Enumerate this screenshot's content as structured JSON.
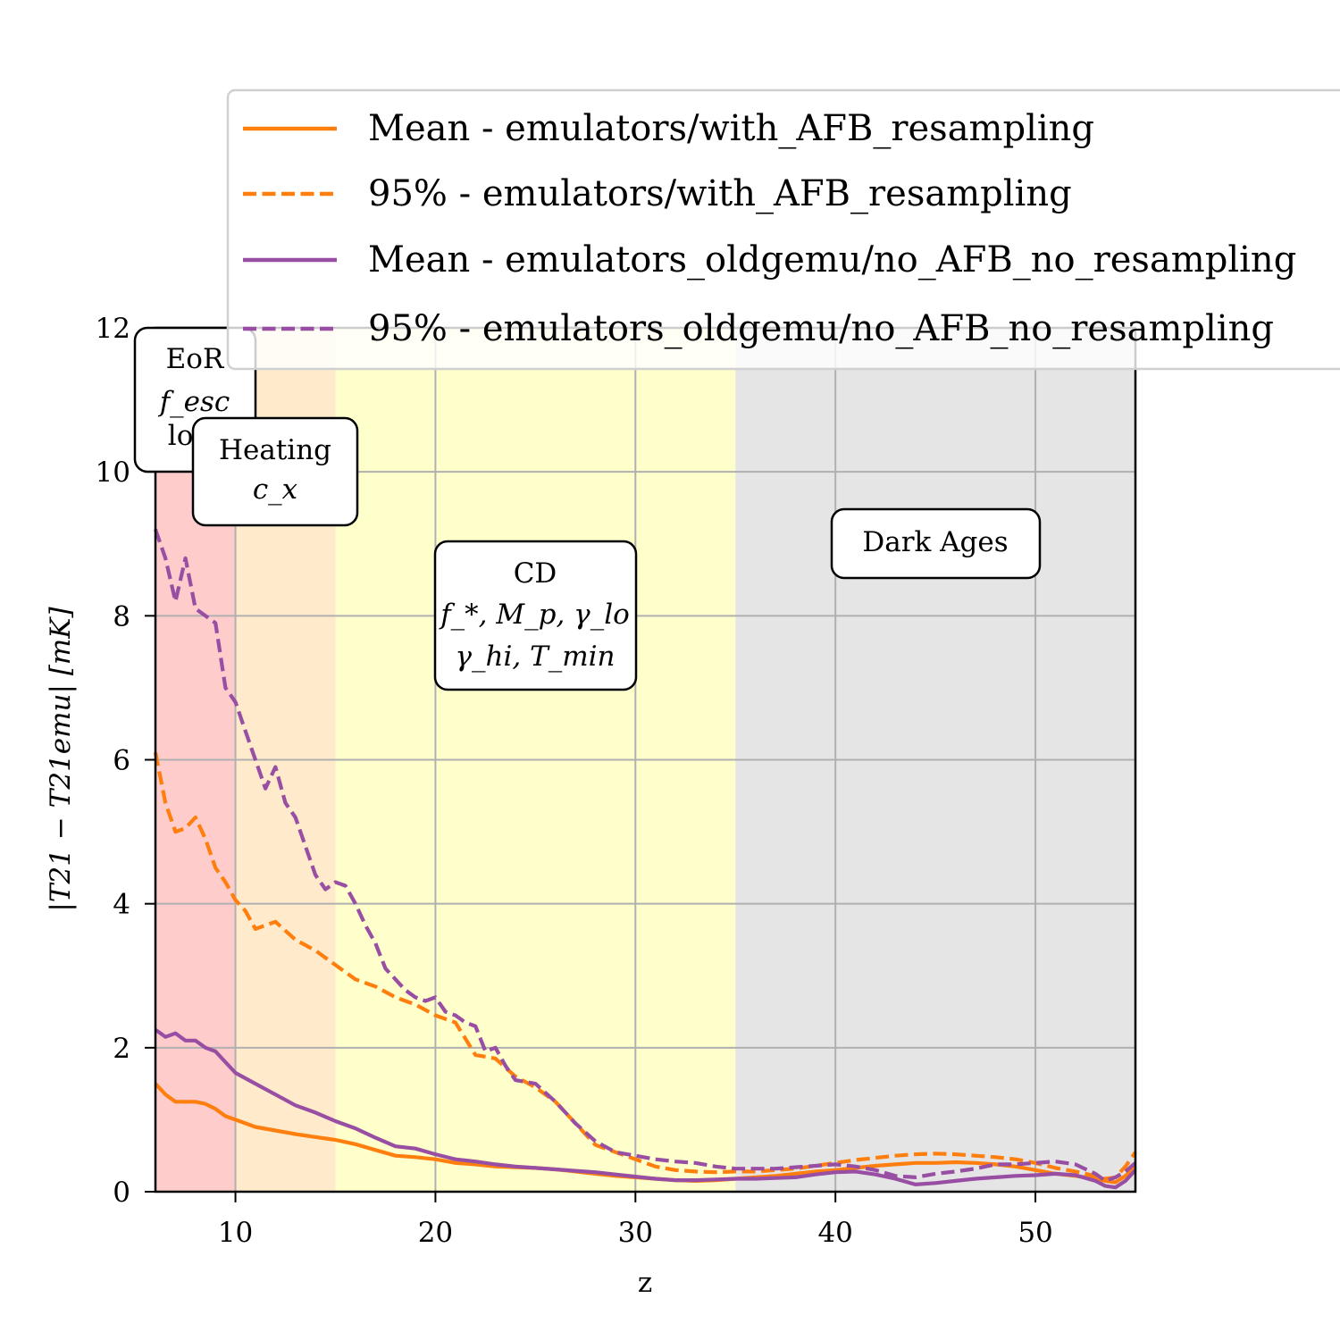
{
  "chart_data": {
    "type": "line",
    "xlabel": "z",
    "ylabel": "|T21 − T21emu| [mK]",
    "xlim": [
      6,
      55
    ],
    "ylim": [
      0,
      12
    ],
    "xticks": [
      "10",
      "20",
      "30",
      "40",
      "50"
    ],
    "yticks": [
      "0",
      "2",
      "4",
      "6",
      "8",
      "10",
      "12"
    ],
    "grid": true,
    "legend_position": "top-right (outside above plot)",
    "regions": [
      {
        "name": "EoR",
        "z_range": [
          6,
          10
        ],
        "color": "#ffcccc"
      },
      {
        "name": "Heating",
        "z_range": [
          10,
          15
        ],
        "color": "#ffebcc"
      },
      {
        "name": "CD",
        "z_range": [
          15,
          35
        ],
        "color": "#ffffcc"
      },
      {
        "name": "Dark Ages",
        "z_range": [
          35,
          55
        ],
        "color": "#e5e5e5"
      }
    ],
    "annotations": [
      {
        "id": "eor",
        "lines": [
          "EoR",
          "f_esc",
          "log"
        ]
      },
      {
        "id": "heating",
        "lines": [
          "Heating",
          "c_x"
        ]
      },
      {
        "id": "cd",
        "lines": [
          "CD",
          "f_*, M_p, γ_lo",
          "γ_hi, T_min"
        ]
      },
      {
        "id": "darkages",
        "lines": [
          "Dark Ages"
        ]
      }
    ],
    "series": [
      {
        "name": "Mean - emulators/with_AFB_resampling",
        "color": "#ff7f0e",
        "style": "solid",
        "x": [
          6,
          6.5,
          7,
          7.5,
          8,
          8.5,
          9,
          9.5,
          10,
          11,
          12,
          13,
          14,
          15,
          16,
          17,
          18,
          19,
          20,
          21,
          22,
          23,
          24,
          25,
          26,
          27,
          28,
          29,
          30,
          31,
          32,
          33,
          34,
          35,
          36,
          37,
          38,
          39,
          40,
          41,
          42,
          43,
          44,
          45,
          46,
          47,
          48,
          49,
          50,
          51,
          52,
          53,
          53.5,
          54,
          54.5,
          55
        ],
        "y": [
          1.5,
          1.35,
          1.25,
          1.25,
          1.25,
          1.22,
          1.15,
          1.05,
          1.0,
          0.9,
          0.85,
          0.8,
          0.76,
          0.72,
          0.66,
          0.58,
          0.5,
          0.48,
          0.45,
          0.4,
          0.38,
          0.35,
          0.34,
          0.33,
          0.31,
          0.28,
          0.25,
          0.22,
          0.2,
          0.18,
          0.16,
          0.15,
          0.16,
          0.18,
          0.2,
          0.22,
          0.25,
          0.28,
          0.3,
          0.33,
          0.36,
          0.38,
          0.4,
          0.4,
          0.41,
          0.4,
          0.38,
          0.35,
          0.3,
          0.25,
          0.22,
          0.18,
          0.15,
          0.13,
          0.22,
          0.35
        ]
      },
      {
        "name": "95% - emulators/with_AFB_resampling",
        "color": "#ff7f0e",
        "style": "dashed",
        "x": [
          6,
          6.5,
          7,
          7.5,
          8,
          8.5,
          9,
          9.5,
          10,
          10.5,
          11,
          11.5,
          12,
          13,
          14,
          15,
          16,
          17,
          18,
          19,
          20,
          21,
          22,
          23,
          24,
          25,
          26,
          27,
          28,
          29,
          30,
          31,
          32,
          33,
          34,
          35,
          36,
          37,
          38,
          39,
          40,
          41,
          42,
          43,
          44,
          45,
          46,
          47,
          48,
          49,
          50,
          51,
          52,
          53,
          53.5,
          54,
          54.5,
          55
        ],
        "y": [
          6.1,
          5.4,
          5.0,
          5.05,
          5.2,
          4.9,
          4.5,
          4.3,
          4.05,
          3.9,
          3.65,
          3.7,
          3.75,
          3.5,
          3.35,
          3.15,
          2.95,
          2.85,
          2.7,
          2.6,
          2.45,
          2.35,
          1.9,
          1.85,
          1.6,
          1.45,
          1.25,
          0.95,
          0.65,
          0.55,
          0.45,
          0.35,
          0.3,
          0.28,
          0.27,
          0.28,
          0.28,
          0.3,
          0.32,
          0.36,
          0.4,
          0.44,
          0.47,
          0.5,
          0.52,
          0.53,
          0.52,
          0.5,
          0.48,
          0.45,
          0.4,
          0.33,
          0.28,
          0.22,
          0.18,
          0.2,
          0.35,
          0.55
        ]
      },
      {
        "name": "Mean - emulators_oldgemu/no_AFB_no_resampling",
        "color": "#984ea3",
        "style": "solid",
        "x": [
          6,
          6.5,
          7,
          7.5,
          8,
          8.5,
          9,
          9.5,
          10,
          11,
          12,
          13,
          14,
          15,
          16,
          17,
          18,
          19,
          20,
          21,
          22,
          23,
          24,
          25,
          26,
          27,
          28,
          29,
          30,
          31,
          32,
          33,
          34,
          35,
          36,
          37,
          38,
          39,
          40,
          41,
          42,
          43,
          44,
          45,
          46,
          47,
          48,
          49,
          50,
          51,
          52,
          53,
          53.5,
          54,
          54.5,
          55
        ],
        "y": [
          2.25,
          2.15,
          2.2,
          2.1,
          2.1,
          2.0,
          1.95,
          1.8,
          1.65,
          1.5,
          1.35,
          1.2,
          1.1,
          0.98,
          0.88,
          0.75,
          0.63,
          0.6,
          0.52,
          0.45,
          0.42,
          0.38,
          0.35,
          0.33,
          0.31,
          0.29,
          0.27,
          0.24,
          0.21,
          0.18,
          0.16,
          0.16,
          0.17,
          0.18,
          0.18,
          0.19,
          0.2,
          0.24,
          0.27,
          0.28,
          0.24,
          0.18,
          0.1,
          0.12,
          0.15,
          0.18,
          0.2,
          0.22,
          0.23,
          0.25,
          0.23,
          0.15,
          0.08,
          0.06,
          0.15,
          0.3
        ]
      },
      {
        "name": "95% - emulators_oldgemu/no_AFB_no_resampling",
        "color": "#984ea3",
        "style": "dashed",
        "x": [
          6,
          6.5,
          7,
          7.5,
          8,
          8.5,
          9,
          9.5,
          10,
          10.5,
          11,
          11.5,
          12,
          12.5,
          13,
          13.5,
          14,
          14.5,
          15,
          15.5,
          16,
          16.5,
          17,
          17.5,
          18,
          18.5,
          19,
          19.5,
          20,
          20.5,
          21,
          21.5,
          22,
          22.5,
          23,
          23.5,
          24,
          25,
          26,
          27,
          28,
          29,
          30,
          31,
          32,
          33,
          34,
          35,
          36,
          37,
          38,
          39,
          40,
          41,
          42,
          43,
          44,
          45,
          46,
          47,
          48,
          49,
          50,
          51,
          52,
          53,
          53.5,
          54,
          54.5,
          55
        ],
        "y": [
          9.2,
          8.8,
          8.2,
          8.8,
          8.1,
          8.0,
          7.9,
          7.0,
          6.8,
          6.4,
          6.0,
          5.6,
          5.9,
          5.4,
          5.2,
          4.8,
          4.4,
          4.2,
          4.3,
          4.25,
          4.0,
          3.7,
          3.45,
          3.1,
          2.95,
          2.8,
          2.7,
          2.65,
          2.7,
          2.5,
          2.45,
          2.35,
          2.3,
          1.95,
          2.0,
          1.75,
          1.55,
          1.5,
          1.25,
          0.95,
          0.7,
          0.55,
          0.5,
          0.45,
          0.42,
          0.4,
          0.35,
          0.32,
          0.32,
          0.32,
          0.34,
          0.36,
          0.38,
          0.35,
          0.3,
          0.22,
          0.2,
          0.25,
          0.28,
          0.32,
          0.38,
          0.38,
          0.4,
          0.42,
          0.38,
          0.25,
          0.15,
          0.2,
          0.28,
          0.4
        ]
      }
    ]
  },
  "legend": [
    {
      "label": "Mean - emulators/with_AFB_resampling",
      "color": "#ff7f0e",
      "dash": false
    },
    {
      "label": "95% - emulators/with_AFB_resampling",
      "color": "#ff7f0e",
      "dash": true
    },
    {
      "label": "Mean - emulators_oldgemu/no_AFB_no_resampling",
      "color": "#984ea3",
      "dash": false
    },
    {
      "label": "95% - emulators_oldgemu/no_AFB_no_resampling",
      "color": "#984ea3",
      "dash": true
    }
  ]
}
